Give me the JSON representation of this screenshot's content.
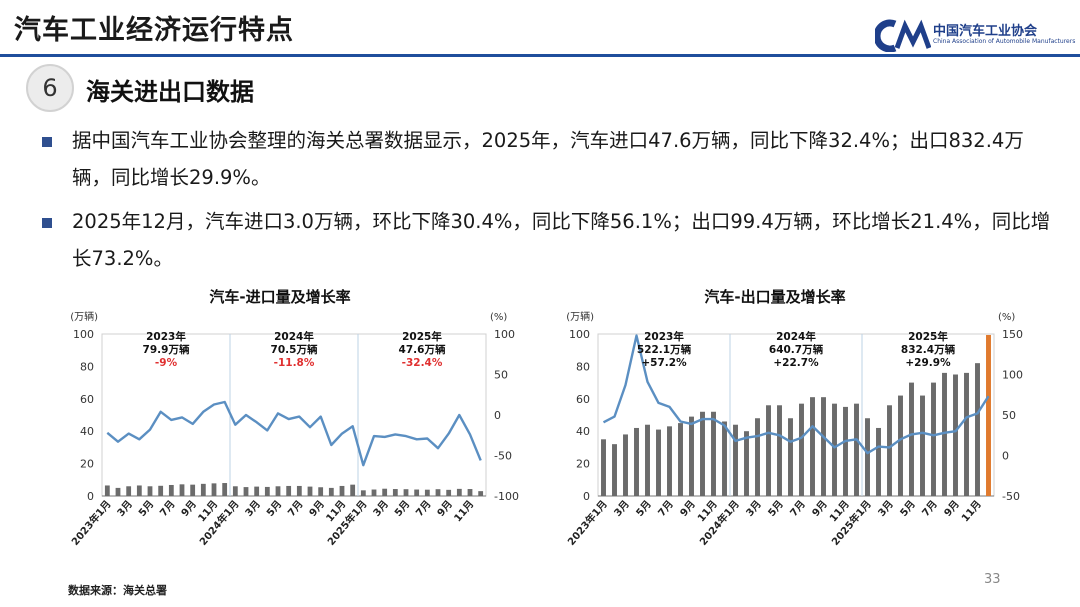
{
  "page": {
    "title": "汽车工业经济运行特点",
    "logo_cn": "中国汽车工业协会",
    "logo_en": "China Association of Automobile Manufacturers",
    "section_number": "6",
    "section_title": "海关进出口数据",
    "bullets": [
      "据中国汽车工业协会整理的海关总署数据显示，2025年，汽车进口47.6万辆，同比下降32.4%；出口832.4万辆，同比增长29.9%。",
      "2025年12月，汽车进口3.0万辆，环比下降30.4%，同比下降56.1%；出口99.4万辆，环比增长21.4%，同比增长73.2%。"
    ],
    "source": "数据来源：海关总署",
    "page_number": "33",
    "colors": {
      "bar": "#6b6b6b",
      "bar_highlight": "#e07a2e",
      "line": "#5b8fc2",
      "negative": "#e03030",
      "accent": "#1f4e9c"
    }
  },
  "chart_data": [
    {
      "type": "bar+line",
      "title": "汽车-进口量及增长率",
      "ylabel_left": "(万辆)",
      "ylabel_right": "(%)",
      "ylim_left": [
        0,
        100
      ],
      "ylim_right": [
        -100,
        100
      ],
      "yticks_left": [
        "0",
        "20",
        "40",
        "60",
        "80",
        "100"
      ],
      "yticks_right": [
        "-100",
        "-50",
        "0",
        "50",
        "100"
      ],
      "xtick_labels": [
        "2023年1月",
        "3月",
        "5月",
        "7月",
        "9月",
        "11月",
        "2024年1月",
        "3月",
        "5月",
        "7月",
        "9月",
        "11月",
        "2025年1月",
        "3月",
        "5月",
        "7月",
        "9月",
        "11月"
      ],
      "series": [
        {
          "kind": "bar",
          "values": [
            6.5,
            5.0,
            6.0,
            6.5,
            6.0,
            6.3,
            6.8,
            7.2,
            7.0,
            7.5,
            7.8,
            8.0,
            6.0,
            5.5,
            5.8,
            5.6,
            6.0,
            6.2,
            6.2,
            5.8,
            5.4,
            5.0,
            6.2,
            7.0,
            3.5,
            4.0,
            4.5,
            4.3,
            4.2,
            4.0,
            3.9,
            4.2,
            3.8,
            4.4,
            4.3,
            3.0
          ]
        },
        {
          "kind": "line",
          "values": [
            -22,
            -33,
            -23,
            -30,
            -18,
            4,
            -6,
            -3,
            -11,
            4,
            13,
            16,
            -12,
            0,
            -9,
            -19,
            2,
            -5,
            -2,
            -15,
            -2,
            -37,
            -23,
            -14,
            -62,
            -26,
            -27,
            -24,
            -26,
            -30,
            -29,
            -41,
            -23,
            0,
            -24,
            -56
          ]
        }
      ],
      "annotations": [
        {
          "year": "2023年",
          "total": "79.9万辆",
          "growth": "-9%"
        },
        {
          "year": "2024年",
          "total": "70.5万辆",
          "growth": "-11.8%"
        },
        {
          "year": "2025年",
          "total": "47.6万辆",
          "growth": "-32.4%"
        }
      ]
    },
    {
      "type": "bar+line",
      "title": "汽车-出口量及增长率",
      "ylabel_left": "(万辆)",
      "ylabel_right": "(%)",
      "ylim_left": [
        0,
        100
      ],
      "ylim_right": [
        -50,
        150
      ],
      "yticks_left": [
        "0",
        "20",
        "40",
        "60",
        "80",
        "100"
      ],
      "yticks_right": [
        "-50",
        "0",
        "50",
        "100",
        "150"
      ],
      "xtick_labels": [
        "2023年1月",
        "3月",
        "5月",
        "7月",
        "9月",
        "11月",
        "2024年1月",
        "3月",
        "5月",
        "7月",
        "9月",
        "11月",
        "2025年1月",
        "3月",
        "5月",
        "7月",
        "9月",
        "11月"
      ],
      "series": [
        {
          "kind": "bar",
          "values": [
            35,
            32,
            38,
            42,
            44,
            41,
            43,
            45,
            49,
            52,
            52,
            46,
            44,
            40,
            48,
            56,
            56,
            48,
            57,
            61,
            61,
            57,
            55,
            57,
            48,
            42,
            56,
            62,
            70,
            62,
            70,
            76,
            75,
            76,
            82,
            99.4
          ]
        },
        {
          "kind": "line",
          "values": [
            41,
            48,
            87,
            148,
            91,
            65,
            60,
            42,
            39,
            45,
            45,
            37,
            18,
            22,
            24,
            28,
            25,
            17,
            22,
            36,
            23,
            10,
            18,
            20,
            3,
            11,
            10,
            20,
            26,
            28,
            25,
            28,
            30,
            47,
            52,
            73.2
          ]
        }
      ],
      "annotations": [
        {
          "year": "2023年",
          "total": "522.1万辆",
          "growth": "+57.2%"
        },
        {
          "year": "2024年",
          "total": "640.7万辆",
          "growth": "+22.7%"
        },
        {
          "year": "2025年",
          "total": "832.4万辆",
          "growth": "+29.9%"
        }
      ]
    }
  ]
}
